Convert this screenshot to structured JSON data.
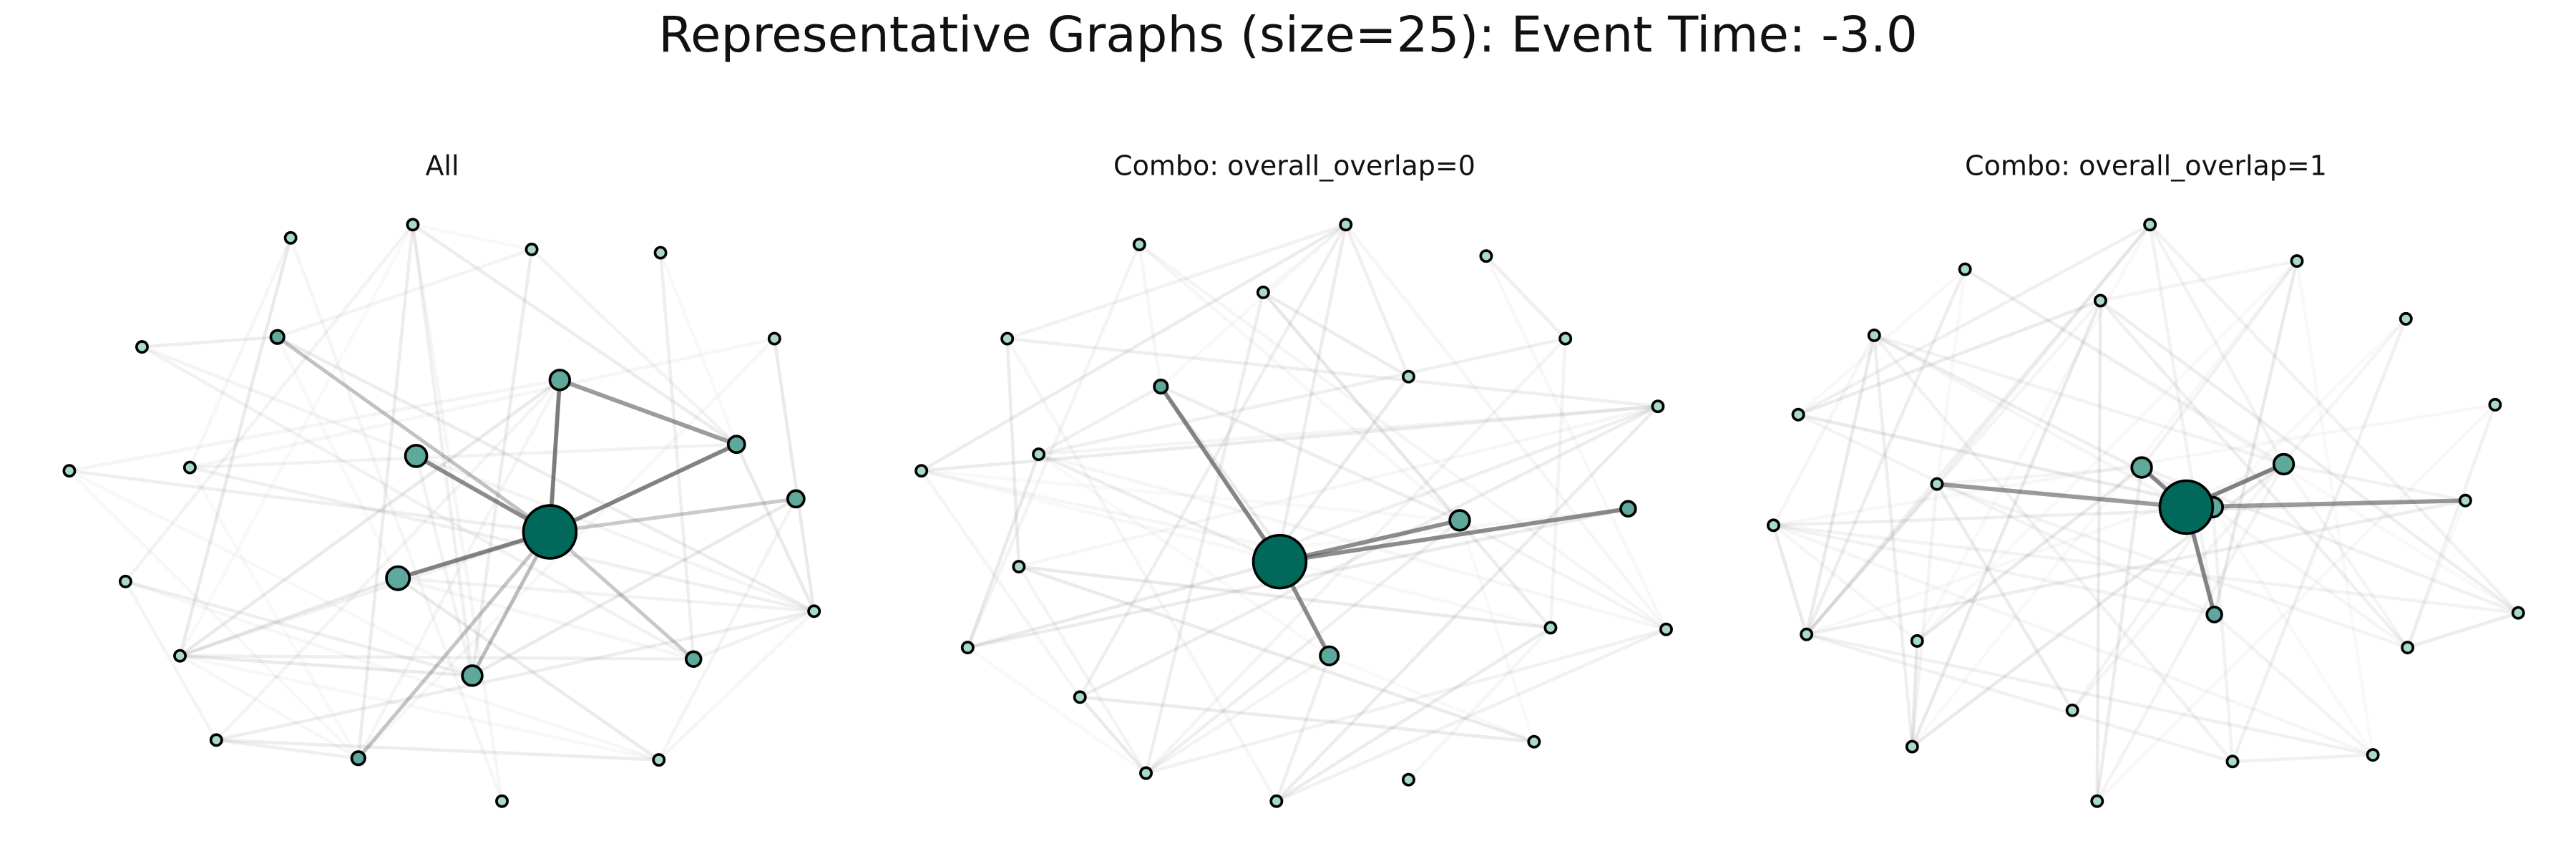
{
  "title": "Representative Graphs (size=25): Event Time: -3.0",
  "panels": [
    {
      "title": "All"
    },
    {
      "title": "Combo: overall_overlap=0"
    },
    {
      "title": "Combo: overall_overlap=1"
    }
  ]
}
